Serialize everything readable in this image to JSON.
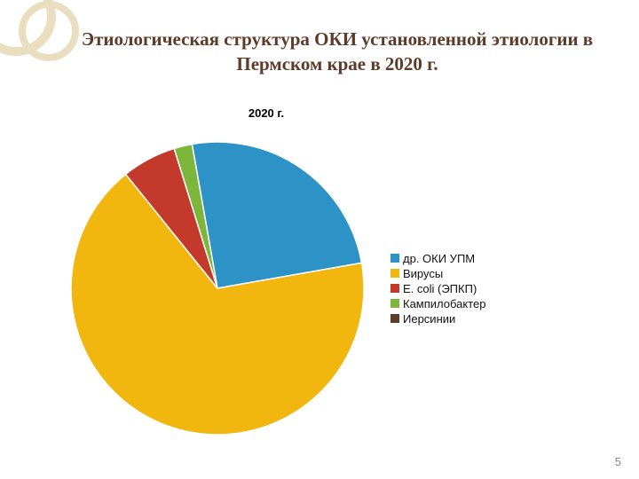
{
  "decoration": {
    "ring_color": "#e9dfc0",
    "bar_color": "#a98a5a"
  },
  "title": "Этиологическая структура ОКИ установленной этиологии в Пермском крае в 2020 г.",
  "title_color": "#5e3a28",
  "page_number": "5",
  "chart": {
    "type": "pie",
    "title": "2020 г.",
    "title_fontsize": 13,
    "title_bold": true,
    "background_color": "#ffffff",
    "start_angle_deg": -10,
    "direction": "clockwise",
    "radius": 165,
    "stroke": "#ffffff",
    "stroke_width": 1.5,
    "series": [
      {
        "label": "др. ОКИ УПМ",
        "value": 25,
        "color": "#2d93c6"
      },
      {
        "label": "Вирусы",
        "value": 67,
        "color": "#f2b70f"
      },
      {
        "label": "E. coli (ЭПКП)",
        "value": 6,
        "color": "#c3392b"
      },
      {
        "label": "Кампилобактер",
        "value": 2,
        "color": "#7cb63b"
      },
      {
        "label": "Иерсинии",
        "value": 0,
        "color": "#5e3a28"
      }
    ],
    "legend": {
      "marker_prefix": "■",
      "fontsize": 13,
      "font_family": "Arial"
    }
  }
}
